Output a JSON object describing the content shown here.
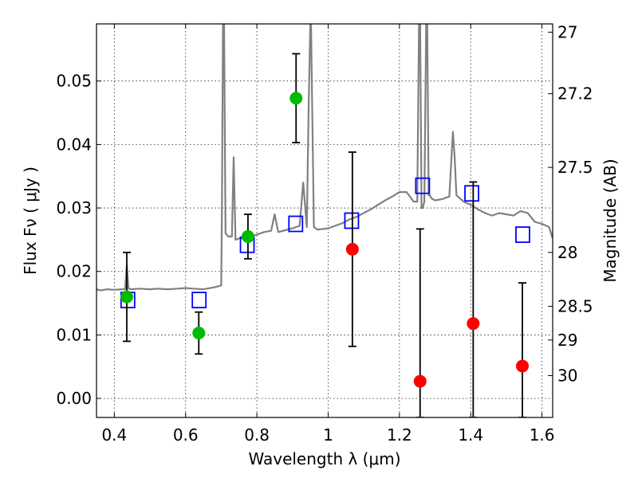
{
  "chart_data": {
    "type": "scatter",
    "title": "",
    "xlabel": "Wavelength  λ (μm)",
    "ylabel": "Flux  Fν  ( μJy )",
    "ylabel_right": "Magnitude (AB)",
    "xlim": [
      0.35,
      1.63
    ],
    "ylim": [
      -0.003,
      0.059
    ],
    "grid": true,
    "x_ticks": [
      0.4,
      0.6,
      0.8,
      1.0,
      1.2,
      1.4,
      1.6
    ],
    "x_tick_labels": [
      "0.4",
      "0.6",
      "0.8",
      "1",
      "1.2",
      "1.4",
      "1.6"
    ],
    "y_ticks": [
      0.0,
      0.01,
      0.02,
      0.03,
      0.04,
      0.05
    ],
    "y_tick_labels": [
      "0.00",
      "0.01",
      "0.02",
      "0.03",
      "0.04",
      "0.05"
    ],
    "right_ticks": [
      {
        "label": "27",
        "flux": 0.0577
      },
      {
        "label": "27.2",
        "flux": 0.048
      },
      {
        "label": "27.5",
        "flux": 0.0364
      },
      {
        "label": "28",
        "flux": 0.023
      },
      {
        "label": "28.5",
        "flux": 0.0145
      },
      {
        "label": "29",
        "flux": 0.0092
      },
      {
        "label": "30",
        "flux": 0.0036
      }
    ],
    "series": [
      {
        "kind": "line",
        "color": "#808080",
        "x": [
          0.35,
          0.36,
          0.38,
          0.4,
          0.42,
          0.43,
          0.435,
          0.44,
          0.45,
          0.47,
          0.5,
          0.52,
          0.55,
          0.58,
          0.6,
          0.62,
          0.65,
          0.68,
          0.7,
          0.702,
          0.705,
          0.708,
          0.712,
          0.72,
          0.73,
          0.735,
          0.74,
          0.75,
          0.76,
          0.78,
          0.8,
          0.82,
          0.84,
          0.85,
          0.86,
          0.88,
          0.9,
          0.92,
          0.93,
          0.94,
          0.945,
          0.95,
          0.952,
          0.96,
          0.97,
          1.0,
          1.02,
          1.04,
          1.06,
          1.08,
          1.1,
          1.12,
          1.14,
          1.16,
          1.18,
          1.2,
          1.22,
          1.24,
          1.25,
          1.255,
          1.258,
          1.262,
          1.265,
          1.27,
          1.275,
          1.278,
          1.282,
          1.285,
          1.29,
          1.3,
          1.32,
          1.34,
          1.35,
          1.355,
          1.36,
          1.38,
          1.4,
          1.42,
          1.44,
          1.46,
          1.48,
          1.5,
          1.52,
          1.54,
          1.56,
          1.58,
          1.6,
          1.62,
          1.63
        ],
        "y": [
          0.0172,
          0.017,
          0.0172,
          0.0171,
          0.0172,
          0.0172,
          0.021,
          0.0173,
          0.0172,
          0.0173,
          0.0172,
          0.0173,
          0.0172,
          0.0173,
          0.0174,
          0.0173,
          0.0172,
          0.0175,
          0.0178,
          0.03,
          0.059,
          0.059,
          0.026,
          0.0255,
          0.0255,
          0.038,
          0.025,
          0.0252,
          0.0252,
          0.0255,
          0.0258,
          0.0262,
          0.0264,
          0.029,
          0.0262,
          0.0265,
          0.0268,
          0.0272,
          0.034,
          0.027,
          0.045,
          0.059,
          0.059,
          0.027,
          0.0266,
          0.0268,
          0.0272,
          0.0276,
          0.0282,
          0.0286,
          0.0292,
          0.0298,
          0.0305,
          0.0312,
          0.0318,
          0.0325,
          0.0325,
          0.031,
          0.031,
          0.059,
          0.059,
          0.03,
          0.03,
          0.031,
          0.059,
          0.059,
          0.032,
          0.032,
          0.0315,
          0.0312,
          0.0314,
          0.0318,
          0.042,
          0.038,
          0.032,
          0.031,
          0.0305,
          0.0298,
          0.0292,
          0.0288,
          0.0292,
          0.029,
          0.0288,
          0.0295,
          0.0292,
          0.0278,
          0.0275,
          0.027,
          0.0252
        ]
      },
      {
        "kind": "markers",
        "marker": "square-open",
        "color": "#0000ff",
        "x": [
          0.438,
          0.638,
          0.773,
          0.909,
          1.066,
          1.265,
          1.403,
          1.546
        ],
        "y": [
          0.0155,
          0.0155,
          0.0242,
          0.0275,
          0.028,
          0.0335,
          0.0323,
          0.0258
        ]
      },
      {
        "kind": "markers",
        "marker": "circle",
        "color": "#00bb00",
        "x": [
          0.435,
          0.637,
          0.775,
          0.91
        ],
        "y": [
          0.016,
          0.0103,
          0.0255,
          0.0473
        ],
        "yerr": [
          0.007,
          0.0033,
          0.0035,
          0.007
        ]
      },
      {
        "kind": "markers",
        "marker": "circle",
        "color": "#ff0000",
        "x": [
          1.068,
          1.258,
          1.407,
          1.545
        ],
        "y": [
          0.0235,
          0.0027,
          0.0118,
          0.0051
        ],
        "yerr": [
          0.0153,
          0.024,
          0.0223,
          0.0131
        ]
      }
    ]
  }
}
